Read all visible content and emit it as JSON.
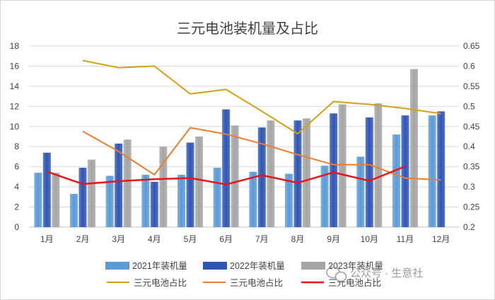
{
  "chart_data": {
    "type": "bar",
    "title": "三元电池装机量及占比",
    "categories": [
      "1月",
      "2月",
      "3月",
      "4月",
      "5月",
      "6月",
      "7月",
      "8月",
      "9月",
      "10月",
      "11月",
      "12月"
    ],
    "ylim": [
      0,
      18
    ],
    "yticks": [
      "0",
      "2",
      "4",
      "6",
      "8",
      "10",
      "12",
      "14",
      "16",
      "18"
    ],
    "y2lim": [
      0.2,
      0.65
    ],
    "y2ticks": [
      "0.2",
      "0.25",
      "0.3",
      "0.35",
      "0.4",
      "0.45",
      "0.5",
      "0.55",
      "0.6",
      "0.65"
    ],
    "grid": true,
    "legend_placement": "bottom",
    "bar_series": [
      {
        "name": "2021年装机量",
        "color": "#5b9bd5",
        "values": [
          5.4,
          3.3,
          5.1,
          5.2,
          5.2,
          5.9,
          5.5,
          5.3,
          6.1,
          7.0,
          9.2,
          11.1
        ]
      },
      {
        "name": "2022年装机量",
        "color": "#2f55b4",
        "values": [
          7.4,
          5.9,
          8.3,
          4.5,
          8.4,
          11.7,
          9.9,
          10.6,
          11.3,
          10.9,
          11.1,
          11.5
        ]
      },
      {
        "name": "2023年装机量",
        "color": "#a5a5a5",
        "values": [
          5.4,
          6.7,
          8.7,
          8.0,
          9.0,
          10.1,
          10.6,
          10.8,
          12.2,
          12.3,
          15.7,
          null
        ]
      }
    ],
    "line_series": [
      {
        "name": "三元电池占比",
        "color": "#d4a017",
        "values": [
          null,
          0.614,
          0.596,
          0.6,
          0.531,
          0.542,
          0.488,
          0.432,
          0.512,
          0.505,
          0.495,
          0.482
        ]
      },
      {
        "name": "三元电池占比",
        "color": "#ed7d31",
        "values": [
          null,
          0.438,
          0.388,
          0.33,
          0.447,
          0.431,
          0.407,
          0.38,
          0.355,
          0.355,
          0.322,
          0.317
        ]
      },
      {
        "name": "三元电池占比",
        "color": "#e8151b",
        "values": [
          0.338,
          0.307,
          0.314,
          0.319,
          0.322,
          0.306,
          0.329,
          0.31,
          0.336,
          0.315,
          0.351,
          null
        ]
      }
    ]
  },
  "watermark": {
    "text": "公众号 · 生意社"
  }
}
